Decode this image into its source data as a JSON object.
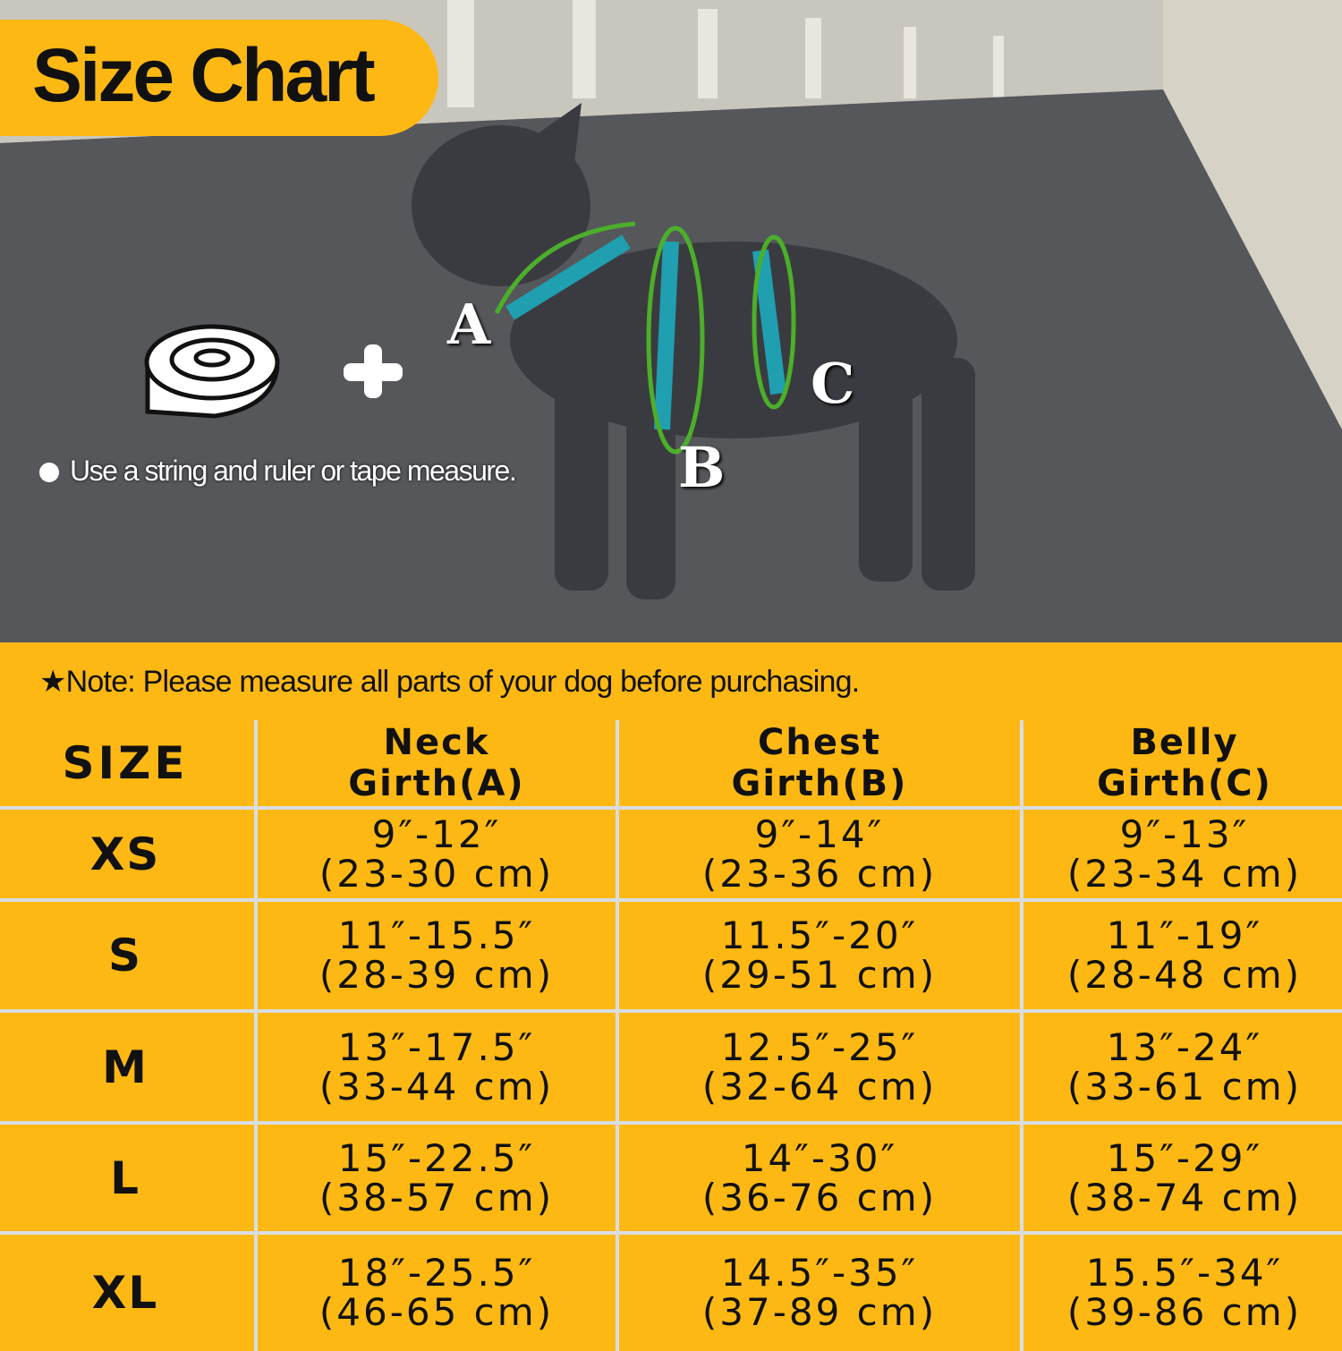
{
  "title": "Size Chart",
  "instruction": "Use a string and ruler or tape measure.",
  "labels": {
    "a": "A",
    "b": "B",
    "c": "C"
  },
  "note": "★Note: Please measure all parts of your dog before purchasing.",
  "colors": {
    "accent": "#FDB813",
    "grid": "#D9DDE2",
    "measure_line": "#4CAF2A",
    "harness": "#1F9FB0"
  },
  "table": {
    "headers": [
      {
        "l1": "SIZE",
        "l2": ""
      },
      {
        "l1": "Neck",
        "l2": "Girth(A)"
      },
      {
        "l1": "Chest",
        "l2": "Girth(B)"
      },
      {
        "l1": "Belly",
        "l2": "Girth(C)"
      }
    ],
    "rows": [
      {
        "size": "XS",
        "neck": [
          "9″-12″",
          "(23-30 cm)"
        ],
        "chest": [
          "9″-14″",
          "(23-36 cm)"
        ],
        "belly": [
          "9″-13″",
          "(23-34 cm)"
        ]
      },
      {
        "size": "S",
        "neck": [
          "11″-15.5″",
          "(28-39 cm)"
        ],
        "chest": [
          "11.5″-20″",
          "(29-51 cm)"
        ],
        "belly": [
          "11″-19″",
          "(28-48 cm)"
        ]
      },
      {
        "size": "M",
        "neck": [
          "13″-17.5″",
          "(33-44 cm)"
        ],
        "chest": [
          "12.5″-25″",
          "(32-64 cm)"
        ],
        "belly": [
          "13″-24″",
          "(33-61 cm)"
        ]
      },
      {
        "size": "L",
        "neck": [
          "15″-22.5″",
          "(38-57 cm)"
        ],
        "chest": [
          "14″-30″",
          "(36-76 cm)"
        ],
        "belly": [
          "15″-29″",
          "(38-74 cm)"
        ]
      },
      {
        "size": "XL",
        "neck": [
          "18″-25.5″",
          "(46-65 cm)"
        ],
        "chest": [
          "14.5″-35″",
          "(37-89 cm)"
        ],
        "belly": [
          "15.5″-34″",
          "(39-86 cm)"
        ]
      }
    ]
  }
}
